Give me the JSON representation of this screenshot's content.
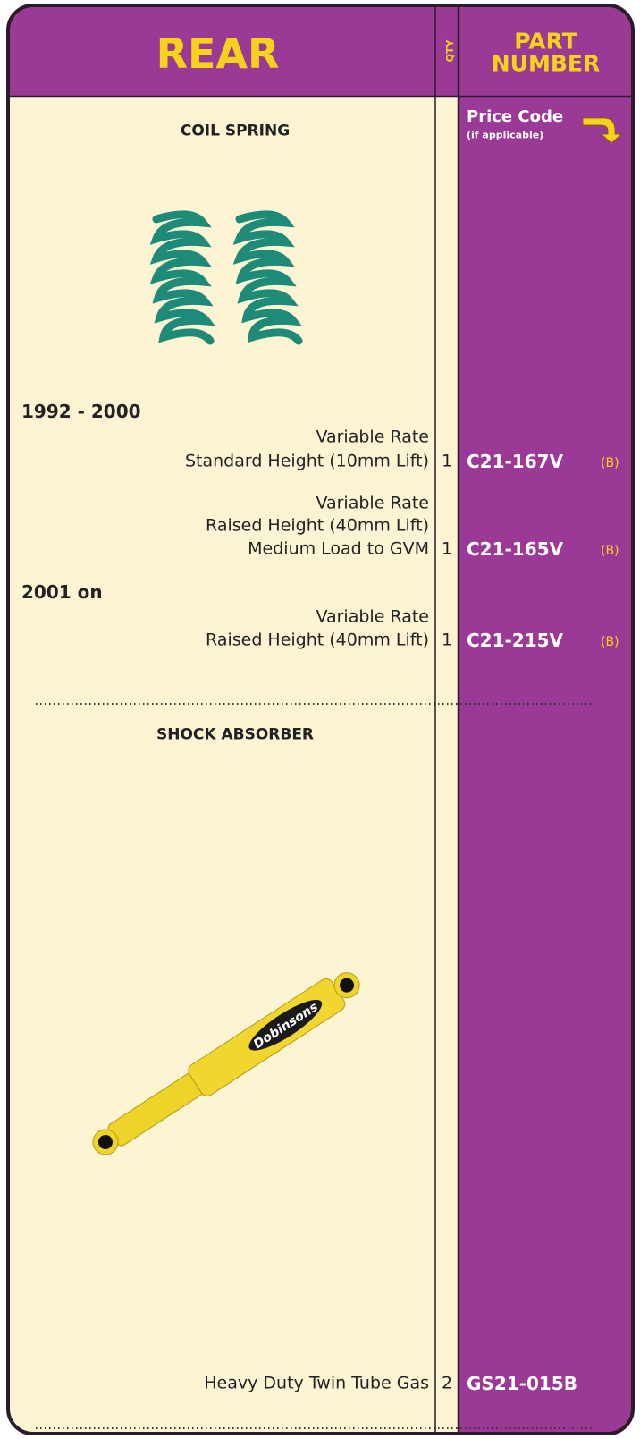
{
  "header": {
    "section": "REAR",
    "qty": "QTY",
    "part_number": [
      "PART",
      "NUMBER"
    ]
  },
  "price_code": {
    "title": "Price Code",
    "note": "(if applicable)"
  },
  "sections": [
    {
      "title": "COIL SPRING",
      "groups": [
        {
          "label": "1992 - 2000",
          "items": [
            {
              "lines": [
                "Variable Rate",
                "Standard Height (10mm Lift)"
              ],
              "qty": 1,
              "part": "C21-167V",
              "price_code": "(B)"
            },
            {
              "lines": [
                "Variable Rate",
                "Raised Height (40mm Lift)",
                "Medium Load to GVM"
              ],
              "qty": 1,
              "part": "C21-165V",
              "price_code": "(B)"
            }
          ]
        },
        {
          "label": "2001 on",
          "items": [
            {
              "lines": [
                "Variable Rate",
                "Raised Height (40mm Lift)"
              ],
              "qty": 1,
              "part": "C21-215V",
              "price_code": "(B)"
            }
          ]
        }
      ]
    },
    {
      "title": "SHOCK ABSORBER",
      "logo": "Dobinsons",
      "items": [
        {
          "lines": [
            "Heavy Duty Twin Tube Gas"
          ],
          "qty": 2,
          "part": "GS21-015B"
        }
      ]
    }
  ]
}
